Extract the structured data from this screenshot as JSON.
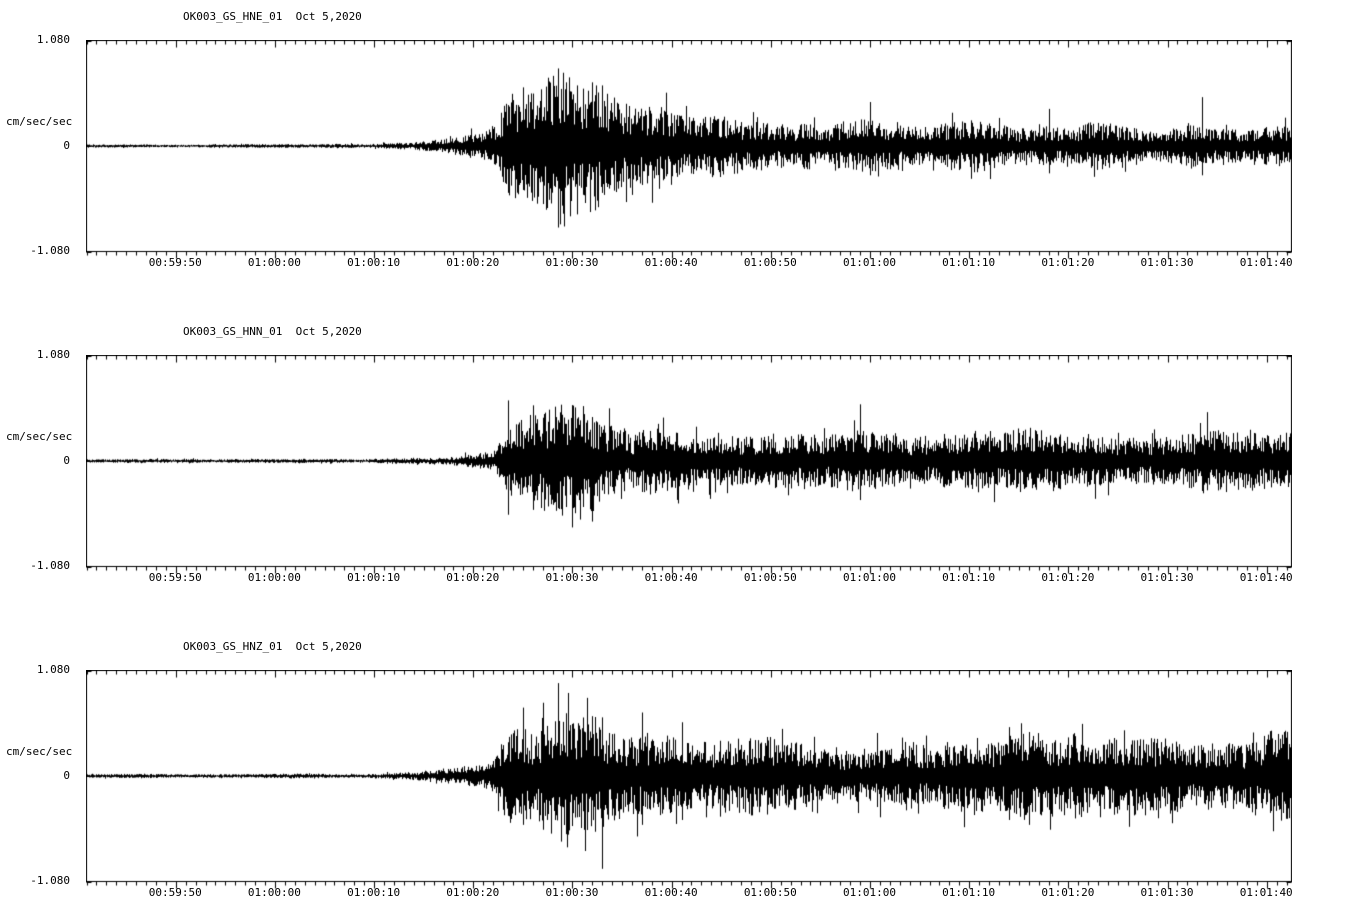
{
  "page": {
    "background": "#ffffff",
    "foreground": "#000000",
    "description_date": "Oct 5,2020"
  },
  "chart_data": [
    {
      "type": "line",
      "title": "OK003_GS_HNE_01  Oct 5,2020",
      "ylabel": "cm/sec/sec",
      "ylim": [
        -1.08,
        1.08
      ],
      "ytick_labels": [
        "1.080",
        "0",
        "-1.080"
      ],
      "x_tick_labels": [
        "00:59:50",
        "01:00:00",
        "01:00:10",
        "01:00:20",
        "01:00:30",
        "01:00:40",
        "01:00:50",
        "01:01:00",
        "01:01:10",
        "01:01:20",
        "01:01:30",
        "01:01:40"
      ],
      "x_first_tick_s": 9,
      "x_tick_interval_s": 10,
      "duration_s": 121.5,
      "minor_tick_s": 1,
      "line_color": "#000000",
      "grid": false,
      "legend": "none",
      "seed": 101,
      "envelope": [
        [
          0,
          0.018
        ],
        [
          28,
          0.02
        ],
        [
          33,
          0.03
        ],
        [
          37,
          0.06
        ],
        [
          40,
          0.12
        ],
        [
          41.5,
          0.2
        ],
        [
          42.5,
          0.45
        ],
        [
          44,
          0.5
        ],
        [
          46,
          0.55
        ],
        [
          47.5,
          0.66
        ],
        [
          49,
          0.6
        ],
        [
          51,
          0.55
        ],
        [
          53,
          0.45
        ],
        [
          56,
          0.33
        ],
        [
          60,
          0.28
        ],
        [
          65,
          0.25
        ],
        [
          70,
          0.22
        ],
        [
          75,
          0.22
        ],
        [
          80,
          0.24
        ],
        [
          85,
          0.2
        ],
        [
          90,
          0.22
        ],
        [
          95,
          0.21
        ],
        [
          100,
          0.22
        ],
        [
          105,
          0.2
        ],
        [
          110,
          0.2
        ],
        [
          115,
          0.18
        ],
        [
          121.5,
          0.2
        ]
      ],
      "spikes": [
        [
          44,
          0.6,
          0.45
        ],
        [
          48,
          0.75,
          0.5
        ],
        [
          49.5,
          0.62,
          0.7
        ],
        [
          52,
          0.62,
          0.48
        ],
        [
          79,
          0.45,
          0.3
        ],
        [
          97,
          0.38,
          0.28
        ],
        [
          112.5,
          0.5,
          0.3
        ]
      ]
    },
    {
      "type": "line",
      "title": "OK003_GS_HNN_01  Oct 5,2020",
      "ylabel": "cm/sec/sec",
      "ylim": [
        -1.08,
        1.08
      ],
      "ytick_labels": [
        "1.080",
        "0",
        "-1.080"
      ],
      "x_tick_labels": [
        "00:59:50",
        "01:00:00",
        "01:00:10",
        "01:00:20",
        "01:00:30",
        "01:00:40",
        "01:00:50",
        "01:01:00",
        "01:01:10",
        "01:01:20",
        "01:01:30",
        "01:01:40"
      ],
      "x_first_tick_s": 9,
      "x_tick_interval_s": 10,
      "duration_s": 121.5,
      "minor_tick_s": 1,
      "line_color": "#000000",
      "grid": false,
      "legend": "none",
      "seed": 202,
      "envelope": [
        [
          0,
          0.018
        ],
        [
          28,
          0.02
        ],
        [
          34,
          0.035
        ],
        [
          38,
          0.07
        ],
        [
          41,
          0.13
        ],
        [
          42.5,
          0.5
        ],
        [
          45,
          0.5
        ],
        [
          48,
          0.55
        ],
        [
          50,
          0.5
        ],
        [
          53,
          0.42
        ],
        [
          56,
          0.35
        ],
        [
          60,
          0.3
        ],
        [
          65,
          0.28
        ],
        [
          70,
          0.27
        ],
        [
          75,
          0.28
        ],
        [
          78,
          0.3
        ],
        [
          82,
          0.27
        ],
        [
          88,
          0.28
        ],
        [
          93,
          0.27
        ],
        [
          98,
          0.26
        ],
        [
          103,
          0.25
        ],
        [
          108,
          0.24
        ],
        [
          113,
          0.25
        ],
        [
          121.5,
          0.26
        ]
      ],
      "spikes": [
        [
          42.5,
          0.62,
          0.55
        ],
        [
          45,
          0.55,
          0.5
        ],
        [
          49,
          0.5,
          0.68
        ],
        [
          51,
          0.45,
          0.62
        ],
        [
          78,
          0.58,
          0.4
        ],
        [
          113,
          0.5,
          0.3
        ]
      ]
    },
    {
      "type": "line",
      "title": "OK003_GS_HNZ_01  Oct 5,2020",
      "ylabel": "cm/sec/sec",
      "ylim": [
        -1.08,
        1.08
      ],
      "ytick_labels": [
        "1.080",
        "0",
        "-1.080"
      ],
      "x_tick_labels": [
        "00:59:50",
        "01:00:00",
        "01:00:10",
        "01:00:20",
        "01:00:30",
        "01:00:40",
        "01:00:50",
        "01:01:00",
        "01:01:10",
        "01:01:20",
        "01:01:30",
        "01:01:40"
      ],
      "x_first_tick_s": 9,
      "x_tick_interval_s": 10,
      "duration_s": 121.5,
      "minor_tick_s": 1,
      "line_color": "#000000",
      "grid": false,
      "legend": "none",
      "seed": 303,
      "envelope": [
        [
          0,
          0.018
        ],
        [
          28,
          0.02
        ],
        [
          33,
          0.04
        ],
        [
          36,
          0.08
        ],
        [
          39,
          0.13
        ],
        [
          41,
          0.2
        ],
        [
          42.5,
          0.5
        ],
        [
          45,
          0.6
        ],
        [
          48,
          0.7
        ],
        [
          50,
          0.6
        ],
        [
          53,
          0.55
        ],
        [
          56,
          0.45
        ],
        [
          60,
          0.4
        ],
        [
          65,
          0.38
        ],
        [
          70,
          0.35
        ],
        [
          75,
          0.33
        ],
        [
          80,
          0.32
        ],
        [
          85,
          0.32
        ],
        [
          90,
          0.36
        ],
        [
          94,
          0.42
        ],
        [
          97,
          0.38
        ],
        [
          102,
          0.34
        ],
        [
          107,
          0.35
        ],
        [
          112,
          0.33
        ],
        [
          117,
          0.32
        ],
        [
          121.5,
          0.35
        ]
      ],
      "spikes": [
        [
          44,
          0.7,
          0.5
        ],
        [
          46,
          0.75,
          0.55
        ],
        [
          48.5,
          0.85,
          0.6
        ],
        [
          50.5,
          0.8,
          0.55
        ],
        [
          52,
          0.6,
          0.95
        ],
        [
          56,
          0.65,
          0.5
        ],
        [
          60,
          0.55,
          0.45
        ],
        [
          93,
          0.5,
          0.45
        ],
        [
          95,
          0.45,
          0.5
        ]
      ]
    }
  ]
}
